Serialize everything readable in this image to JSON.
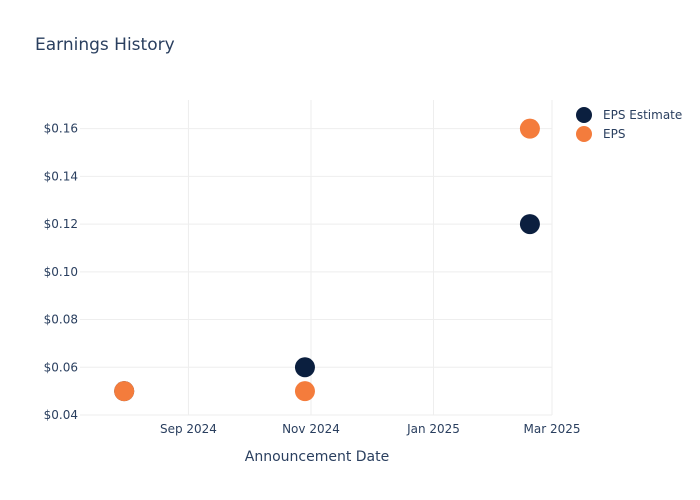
{
  "chart_data": {
    "type": "scatter",
    "title": "Earnings History",
    "xlabel": "Announcement Date",
    "ylabel": "",
    "x_ticks": [
      {
        "date": "2024-09-01",
        "label": "Sep 2024"
      },
      {
        "date": "2024-11-01",
        "label": "Nov 2024"
      },
      {
        "date": "2025-01-01",
        "label": "Jan 2025"
      },
      {
        "date": "2025-03-01",
        "label": "Mar 2025"
      }
    ],
    "xlim": [
      "2024-07-09",
      "2025-03-01"
    ],
    "y_ticks": [
      {
        "value": 0.04,
        "label": "$0.04"
      },
      {
        "value": 0.06,
        "label": "$0.06"
      },
      {
        "value": 0.08,
        "label": "$0.08"
      },
      {
        "value": 0.1,
        "label": "$0.10"
      },
      {
        "value": 0.12,
        "label": "$0.12"
      },
      {
        "value": 0.14,
        "label": "$0.14"
      },
      {
        "value": 0.16,
        "label": "$0.16"
      }
    ],
    "ylim": [
      0.04,
      0.172
    ],
    "grid": true,
    "legend_position": "top-right",
    "series": [
      {
        "name": "EPS Estimate",
        "color": "#0b1f3f",
        "points": [
          {
            "x": "2024-07-31",
            "y": 0.05
          },
          {
            "x": "2024-10-29",
            "y": 0.06
          },
          {
            "x": "2025-02-18",
            "y": 0.12
          }
        ]
      },
      {
        "name": "EPS",
        "color": "#f47c3c",
        "points": [
          {
            "x": "2024-07-31",
            "y": 0.05
          },
          {
            "x": "2024-10-29",
            "y": 0.05
          },
          {
            "x": "2025-02-18",
            "y": 0.16
          }
        ]
      }
    ]
  }
}
